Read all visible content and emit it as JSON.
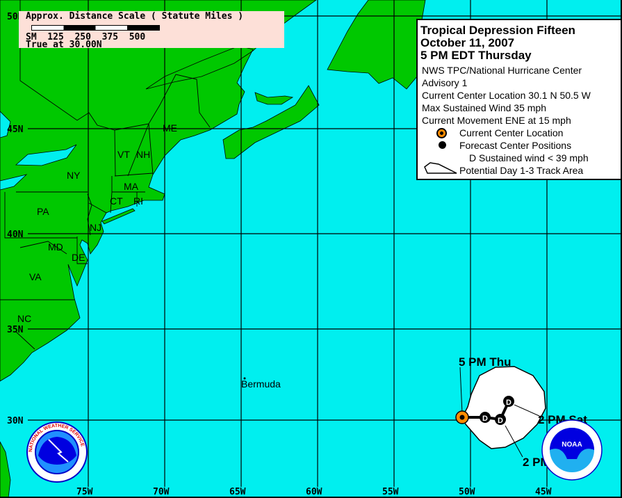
{
  "colors": {
    "ocean": "#00efef",
    "land": "#00c800",
    "cone": "#ffffff",
    "current_center": "#ff8c00",
    "forecast_point": "#000000"
  },
  "scale_box": {
    "title": "Approx. Distance Scale ( Statute Miles )",
    "ticks": "SM  125  250  375  500",
    "note": "True at 30.00N"
  },
  "legend": {
    "title": "Tropical Depression Fifteen",
    "date": "October 11, 2007",
    "time": "5 PM EDT Thursday",
    "agency": "NWS TPC/National Hurricane Center",
    "advisory": "Advisory 1",
    "location": "Current Center Location 30.1 N  50.5 W",
    "wind": "Max Sustained Wind  35 mph",
    "movement": "Current Movement ENE at  15 mph",
    "key_current": "Current Center Location",
    "key_forecast": "Forecast Center Positions",
    "key_d": "D  Sustained wind < 39 mph",
    "key_cone": "Potential Day 1-3 Track Area"
  },
  "lat_labels": [
    "50N",
    "45N",
    "40N",
    "35N",
    "30N"
  ],
  "lon_labels": [
    "75W",
    "70W",
    "65W",
    "60W",
    "55W",
    "50W",
    "45W"
  ],
  "states": [
    "NY",
    "PA",
    "VT",
    "NH",
    "ME",
    "MA",
    "CT",
    "RI",
    "NJ",
    "MD",
    "DE",
    "VA",
    "NC"
  ],
  "places": {
    "bermuda": "Bermuda"
  },
  "track": {
    "current": {
      "lat": 30.1,
      "lon": -50.5,
      "label": "5 PM Thu"
    },
    "forecast": [
      {
        "label": "2 PM Fri",
        "marker": "D"
      },
      {
        "label": "",
        "marker": "D"
      },
      {
        "label": "2 PM Sat",
        "marker": "D"
      }
    ]
  },
  "logos": {
    "nws": "NATIONAL WEATHER SERVICE",
    "noaa": "NOAA"
  }
}
